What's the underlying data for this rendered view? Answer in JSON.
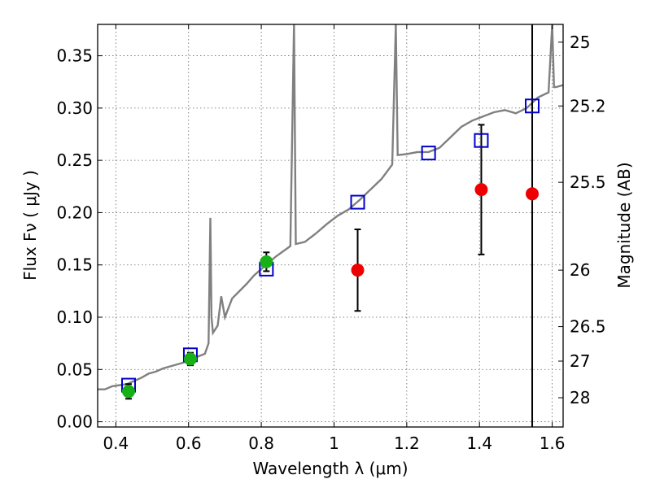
{
  "chart_data": {
    "type": "scatter",
    "xlabel": "Wavelength  λ (μm)",
    "ylabel": "Flux  Fν  ( μJy )",
    "ylabel_right": "Magnitude (AB)",
    "xlim": [
      0.35,
      1.63
    ],
    "ylim": [
      -0.005,
      0.38
    ],
    "grid": true,
    "x_ticks": [
      0.4,
      0.6,
      0.8,
      1.0,
      1.2,
      1.4,
      1.6
    ],
    "x_tick_labels": [
      "0.4",
      "0.6",
      "0.8",
      "1",
      "1.2",
      "1.4",
      "1.6"
    ],
    "y_ticks": [
      0.0,
      0.05,
      0.1,
      0.15,
      0.2,
      0.25,
      0.3,
      0.35
    ],
    "y_tick_labels": [
      "0.00",
      "0.05",
      "0.10",
      "0.15",
      "0.20",
      "0.25",
      "0.30",
      "0.35"
    ],
    "right_ticks": [
      {
        "label": "25",
        "flux": 0.363
      },
      {
        "label": "25.2",
        "flux": 0.302
      },
      {
        "label": "25.5",
        "flux": 0.229
      },
      {
        "label": "26",
        "flux": 0.145
      },
      {
        "label": "26.5",
        "flux": 0.091
      },
      {
        "label": "27",
        "flux": 0.058
      },
      {
        "label": "28",
        "flux": 0.023
      }
    ],
    "vline_x": 1.545,
    "colors": {
      "model": "#808080",
      "detection": "#17b117",
      "upper_limit": "#ee0000",
      "model_flux": "#0000cc",
      "errorbar": "#000000",
      "grid": "#666666"
    },
    "series": [
      {
        "marker": "line",
        "points": [
          [
            0.35,
            0.031
          ],
          [
            0.37,
            0.031
          ],
          [
            0.39,
            0.034
          ],
          [
            0.41,
            0.035
          ],
          [
            0.43,
            0.036
          ],
          [
            0.45,
            0.039
          ],
          [
            0.47,
            0.042
          ],
          [
            0.49,
            0.046
          ],
          [
            0.51,
            0.048
          ],
          [
            0.53,
            0.051
          ],
          [
            0.55,
            0.053
          ],
          [
            0.57,
            0.055
          ],
          [
            0.59,
            0.057
          ],
          [
            0.61,
            0.06
          ],
          [
            0.63,
            0.063
          ],
          [
            0.645,
            0.065
          ],
          [
            0.655,
            0.075
          ],
          [
            0.66,
            0.195
          ],
          [
            0.663,
            0.1
          ],
          [
            0.667,
            0.085
          ],
          [
            0.68,
            0.092
          ],
          [
            0.69,
            0.12
          ],
          [
            0.7,
            0.1
          ],
          [
            0.72,
            0.118
          ],
          [
            0.74,
            0.125
          ],
          [
            0.76,
            0.132
          ],
          [
            0.78,
            0.14
          ],
          [
            0.8,
            0.146
          ],
          [
            0.82,
            0.152
          ],
          [
            0.84,
            0.158
          ],
          [
            0.86,
            0.163
          ],
          [
            0.88,
            0.168
          ],
          [
            0.89,
            0.38
          ],
          [
            0.895,
            0.17
          ],
          [
            0.92,
            0.172
          ],
          [
            0.95,
            0.18
          ],
          [
            0.98,
            0.189
          ],
          [
            1.01,
            0.197
          ],
          [
            1.04,
            0.203
          ],
          [
            1.07,
            0.212
          ],
          [
            1.1,
            0.222
          ],
          [
            1.13,
            0.232
          ],
          [
            1.16,
            0.246
          ],
          [
            1.17,
            0.38
          ],
          [
            1.175,
            0.255
          ],
          [
            1.2,
            0.256
          ],
          [
            1.23,
            0.258
          ],
          [
            1.26,
            0.258
          ],
          [
            1.29,
            0.262
          ],
          [
            1.32,
            0.272
          ],
          [
            1.35,
            0.282
          ],
          [
            1.38,
            0.288
          ],
          [
            1.41,
            0.292
          ],
          [
            1.44,
            0.296
          ],
          [
            1.47,
            0.298
          ],
          [
            1.5,
            0.295
          ],
          [
            1.53,
            0.3
          ],
          [
            1.56,
            0.31
          ],
          [
            1.59,
            0.315
          ],
          [
            1.6,
            0.38
          ],
          [
            1.605,
            0.32
          ],
          [
            1.61,
            0.32
          ],
          [
            1.63,
            0.322
          ]
        ]
      },
      {
        "marker": "circle",
        "points": [
          {
            "x": 0.435,
            "y": 0.029,
            "err": 0.007
          },
          {
            "x": 0.605,
            "y": 0.06,
            "err": 0.006
          },
          {
            "x": 0.814,
            "y": 0.153,
            "err": 0.009
          }
        ]
      },
      {
        "marker": "circle",
        "points": [
          {
            "x": 1.065,
            "y": 0.145,
            "err": 0.039
          },
          {
            "x": 1.405,
            "y": 0.222,
            "err": 0.062
          },
          {
            "x": 1.545,
            "y": 0.218,
            "err": 0.0
          }
        ]
      },
      {
        "marker": "square",
        "points": [
          {
            "x": 0.435,
            "y": 0.035
          },
          {
            "x": 0.605,
            "y": 0.064
          },
          {
            "x": 0.814,
            "y": 0.146
          },
          {
            "x": 1.065,
            "y": 0.21
          },
          {
            "x": 1.26,
            "y": 0.257
          },
          {
            "x": 1.405,
            "y": 0.269
          },
          {
            "x": 1.545,
            "y": 0.302
          }
        ]
      }
    ]
  }
}
